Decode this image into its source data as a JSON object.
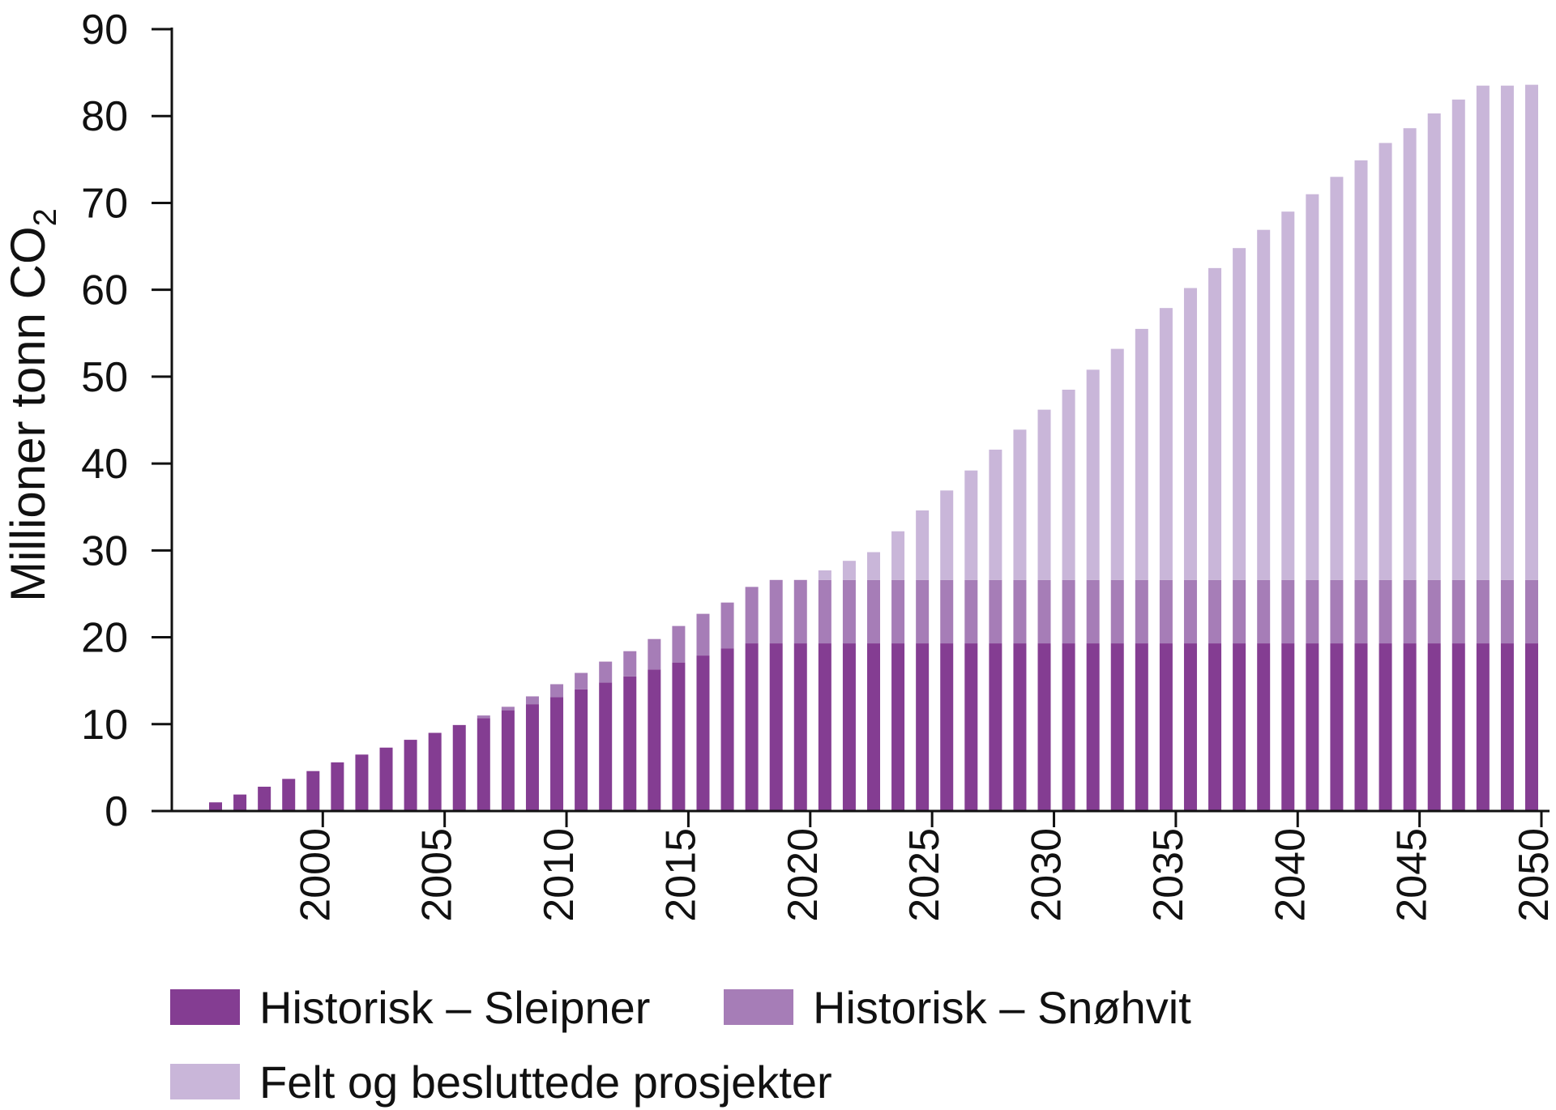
{
  "chart_data": {
    "type": "bar",
    "stacked": true,
    "ylabel": "Millioner tonn CO",
    "ylabel_subscript": "2",
    "ylim": [
      0,
      90
    ],
    "yticks": [
      0,
      10,
      20,
      30,
      40,
      50,
      60,
      70,
      80,
      90
    ],
    "xtick_labels": [
      "2000",
      "2005",
      "2010",
      "2015",
      "2020",
      "2025",
      "2030",
      "2035",
      "2040",
      "2045",
      "2050"
    ],
    "grid": false,
    "legend_position": "bottom",
    "colors": {
      "Historisk – Sleipner": "#843d92",
      "Historisk – Snøhvit": "#a67db7",
      "Felt og besluttede prosjekter": "#c9b6d9"
    },
    "x": [
      1996,
      1997,
      1998,
      1999,
      2000,
      2001,
      2002,
      2003,
      2004,
      2005,
      2006,
      2007,
      2008,
      2009,
      2010,
      2011,
      2012,
      2013,
      2014,
      2015,
      2016,
      2017,
      2018,
      2019,
      2020,
      2021,
      2022,
      2023,
      2024,
      2025,
      2026,
      2027,
      2028,
      2029,
      2030,
      2031,
      2032,
      2033,
      2034,
      2035,
      2036,
      2037,
      2038,
      2039,
      2040,
      2041,
      2042,
      2043,
      2044,
      2045,
      2046,
      2047,
      2048,
      2049,
      2050
    ],
    "series": [
      {
        "name": "Historisk – Sleipner",
        "values": [
          1.0,
          1.9,
          2.8,
          3.7,
          4.6,
          5.6,
          6.5,
          7.3,
          8.2,
          9.0,
          9.9,
          10.7,
          11.6,
          12.3,
          13.1,
          14.0,
          14.8,
          15.5,
          16.3,
          17.1,
          17.9,
          18.7,
          19.3,
          19.3,
          19.3,
          19.3,
          19.3,
          19.3,
          19.3,
          19.3,
          19.3,
          19.3,
          19.3,
          19.3,
          19.3,
          19.3,
          19.3,
          19.3,
          19.3,
          19.3,
          19.3,
          19.3,
          19.3,
          19.3,
          19.3,
          19.3,
          19.3,
          19.3,
          19.3,
          19.3,
          19.3,
          19.3,
          19.3,
          19.3,
          19.3
        ]
      },
      {
        "name": "Historisk – Snøhvit",
        "values": [
          0,
          0,
          0,
          0,
          0,
          0,
          0,
          0,
          0,
          0,
          0,
          0.3,
          0.4,
          0.9,
          1.5,
          1.9,
          2.4,
          2.9,
          3.5,
          4.2,
          4.8,
          5.3,
          6.5,
          7.3,
          7.3,
          7.3,
          7.3,
          7.3,
          7.3,
          7.3,
          7.3,
          7.3,
          7.3,
          7.3,
          7.3,
          7.3,
          7.3,
          7.3,
          7.3,
          7.3,
          7.3,
          7.3,
          7.3,
          7.3,
          7.3,
          7.3,
          7.3,
          7.3,
          7.3,
          7.3,
          7.3,
          7.3,
          7.3,
          7.3,
          7.3
        ]
      },
      {
        "name": "Felt og besluttede prosjekter",
        "values": [
          0,
          0,
          0,
          0,
          0,
          0,
          0,
          0,
          0,
          0,
          0,
          0,
          0,
          0,
          0,
          0,
          0,
          0,
          0,
          0,
          0,
          0,
          0,
          0,
          0,
          1.1,
          2.2,
          3.2,
          5.6,
          8.0,
          10.3,
          12.6,
          15.0,
          17.3,
          19.6,
          21.9,
          24.2,
          26.6,
          28.9,
          31.3,
          33.6,
          35.9,
          38.2,
          40.3,
          42.4,
          44.4,
          46.4,
          48.3,
          50.3,
          52.0,
          53.7,
          55.3,
          56.9,
          56.9,
          57.0
        ]
      }
    ]
  }
}
